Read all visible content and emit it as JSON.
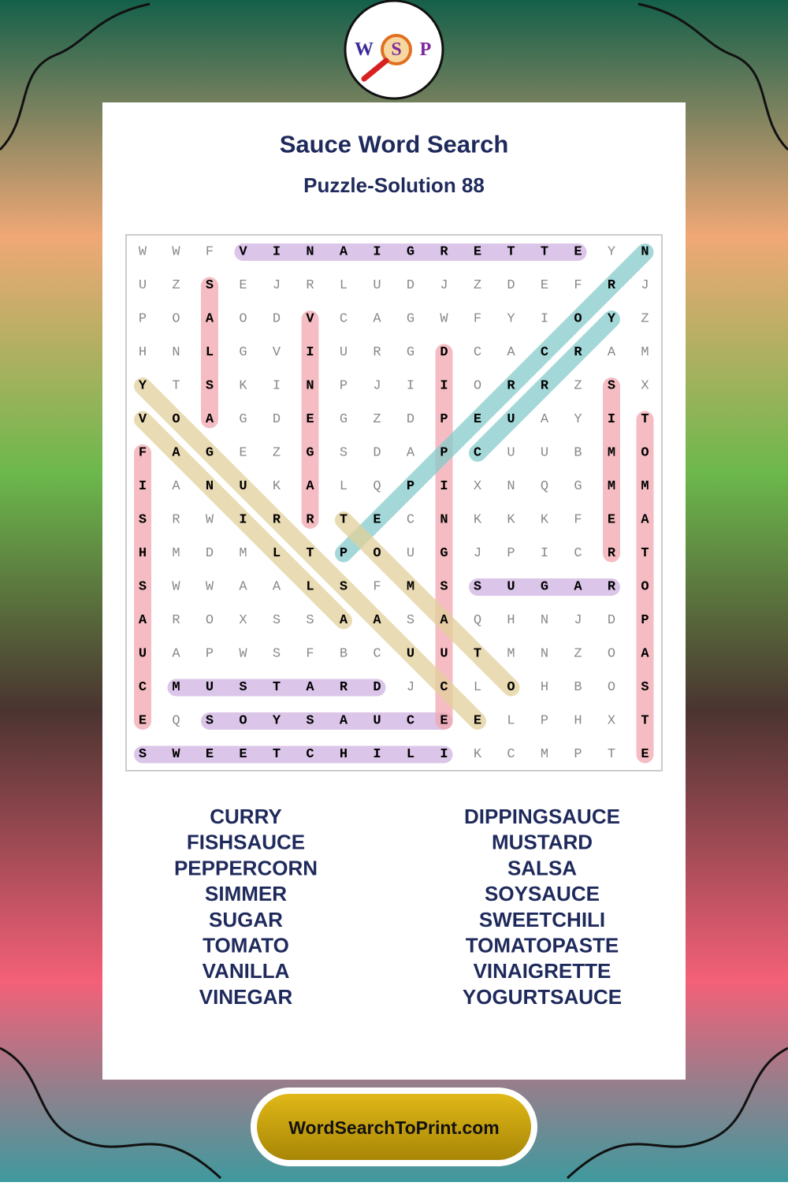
{
  "logo": {
    "letters": [
      "W",
      "S",
      "P"
    ]
  },
  "header": {
    "title": "Sauce Word Search",
    "subtitle": "Puzzle-Solution 88"
  },
  "grid": [
    [
      "W",
      "W",
      "F",
      "V",
      "I",
      "N",
      "A",
      "I",
      "G",
      "R",
      "E",
      "T",
      "T",
      "E",
      "Y",
      "N"
    ],
    [
      "U",
      "Z",
      "S",
      "E",
      "J",
      "R",
      "L",
      "U",
      "D",
      "J",
      "Z",
      "D",
      "E",
      "F",
      "R",
      "J"
    ],
    [
      "P",
      "O",
      "A",
      "O",
      "D",
      "V",
      "C",
      "A",
      "G",
      "W",
      "F",
      "Y",
      "I",
      "O",
      "Y",
      "Z"
    ],
    [
      "H",
      "N",
      "L",
      "G",
      "V",
      "I",
      "U",
      "R",
      "G",
      "D",
      "C",
      "A",
      "C",
      "R",
      "A",
      "M"
    ],
    [
      "Y",
      "T",
      "S",
      "K",
      "I",
      "N",
      "P",
      "J",
      "I",
      "I",
      "O",
      "R",
      "R",
      "Z",
      "S",
      "X"
    ],
    [
      "V",
      "O",
      "A",
      "G",
      "D",
      "E",
      "G",
      "Z",
      "D",
      "P",
      "E",
      "U",
      "A",
      "Y",
      "I",
      "T"
    ],
    [
      "F",
      "A",
      "G",
      "E",
      "Z",
      "G",
      "S",
      "D",
      "A",
      "P",
      "C",
      "U",
      "U",
      "B",
      "M",
      "O"
    ],
    [
      "I",
      "A",
      "N",
      "U",
      "K",
      "A",
      "L",
      "Q",
      "P",
      "I",
      "X",
      "N",
      "Q",
      "G",
      "M",
      "M"
    ],
    [
      "S",
      "R",
      "W",
      "I",
      "R",
      "R",
      "T",
      "E",
      "C",
      "N",
      "K",
      "K",
      "K",
      "F",
      "E",
      "A"
    ],
    [
      "H",
      "M",
      "D",
      "M",
      "L",
      "T",
      "P",
      "O",
      "U",
      "G",
      "J",
      "P",
      "I",
      "C",
      "R",
      "T"
    ],
    [
      "S",
      "W",
      "W",
      "A",
      "A",
      "L",
      "S",
      "F",
      "M",
      "S",
      "S",
      "U",
      "G",
      "A",
      "R",
      "O"
    ],
    [
      "A",
      "R",
      "O",
      "X",
      "S",
      "S",
      "A",
      "A",
      "S",
      "A",
      "Q",
      "H",
      "N",
      "J",
      "D",
      "P"
    ],
    [
      "U",
      "A",
      "P",
      "W",
      "S",
      "F",
      "B",
      "C",
      "U",
      "U",
      "T",
      "M",
      "N",
      "Z",
      "O",
      "A"
    ],
    [
      "C",
      "M",
      "U",
      "S",
      "T",
      "A",
      "R",
      "D",
      "J",
      "C",
      "L",
      "O",
      "H",
      "B",
      "O",
      "S"
    ],
    [
      "E",
      "Q",
      "S",
      "O",
      "Y",
      "S",
      "A",
      "U",
      "C",
      "E",
      "E",
      "L",
      "P",
      "H",
      "X",
      "T"
    ],
    [
      "S",
      "W",
      "E",
      "E",
      "T",
      "C",
      "H",
      "I",
      "L",
      "I",
      "K",
      "C",
      "M",
      "P",
      "T",
      "E"
    ]
  ],
  "word_list": {
    "left": [
      "CURRY",
      "FISHSAUCE",
      "PEPPERCORN",
      "SIMMER",
      "SUGAR",
      "TOMATO",
      "VANILLA",
      "VINEGAR"
    ],
    "right": [
      "DIPPINGSAUCE",
      "MUSTARD",
      "SALSA",
      "SOYSAUCE",
      "SWEETCHILI",
      "TOMATOPASTE",
      "VINAIGRETTE",
      "YOGURTSAUCE"
    ]
  },
  "footer": {
    "button": "WordSearchToPrint.com"
  }
}
